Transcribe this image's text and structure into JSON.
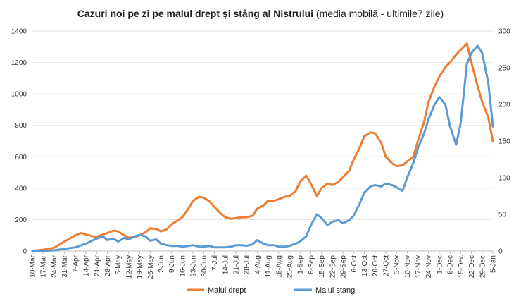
{
  "chart_data": {
    "type": "line",
    "title_bold": "Cazuri noi pe zi pe malul drept și stâng al Nistrului",
    "title_rest": " (media mobilă -  ultimile7 zile)",
    "y_left": {
      "min": 0,
      "max": 1400,
      "step": 200
    },
    "y_right": {
      "min": 0,
      "max": 300,
      "step": 50
    },
    "grid": "horizontal",
    "legend_position": "bottom",
    "categories": [
      "10-Mar",
      "17-Mar",
      "24-Mar",
      "31-Mar",
      "7-Apr",
      "14-Apr",
      "21-Apr",
      "28-Apr",
      "5-May",
      "12-May",
      "19-May",
      "26-May",
      "2-Jun",
      "9-Jun",
      "16-Jun",
      "23-Jun",
      "30-Jun",
      "7-Jul",
      "14-Jul",
      "21-Jul",
      "28-Jul",
      "4-Aug",
      "11-Aug",
      "18-Aug",
      "25-Aug",
      "1-Sep",
      "8-Sep",
      "15-Sep",
      "22-Sep",
      "29-Sep",
      "6-Oct",
      "13-Oct",
      "20-Oct",
      "27-Oct",
      "3-Nov",
      "10-Nov",
      "17-Nov",
      "24-Nov",
      "1-Dec",
      "8-Dec",
      "15-Dec",
      "22-Dec",
      "29-Dec",
      "5-Jan"
    ],
    "series": [
      {
        "name": "Malul drept",
        "axis": "left",
        "color": "#ED7D31",
        "x": [
          0,
          7,
          14,
          21,
          28,
          32,
          35,
          39,
          42,
          46,
          49,
          53,
          56,
          60,
          63,
          67,
          70,
          74,
          77,
          81,
          84,
          88,
          91,
          95,
          98,
          102,
          105,
          109,
          112,
          116,
          119,
          123,
          126,
          130,
          133,
          137,
          140,
          144,
          147,
          151,
          154,
          158,
          161,
          165,
          168,
          172,
          175,
          179,
          182,
          186,
          189,
          193,
          196,
          200,
          203,
          207,
          210,
          214,
          217,
          221,
          224,
          228,
          231,
          235,
          238,
          242,
          245,
          249,
          252,
          256,
          259,
          263,
          266,
          270,
          273,
          277,
          280,
          284,
          287,
          291,
          294,
          298,
          301
        ],
        "values": [
          2,
          8,
          20,
          60,
          100,
          115,
          105,
          95,
          90,
          105,
          115,
          130,
          125,
          100,
          85,
          90,
          100,
          120,
          145,
          140,
          125,
          140,
          170,
          195,
          215,
          270,
          320,
          345,
          340,
          315,
          280,
          240,
          215,
          205,
          210,
          215,
          215,
          225,
          270,
          290,
          320,
          320,
          330,
          345,
          350,
          380,
          440,
          480,
          430,
          350,
          400,
          430,
          420,
          440,
          470,
          510,
          580,
          660,
          730,
          755,
          750,
          690,
          600,
          560,
          540,
          545,
          570,
          600,
          700,
          820,
          950,
          1050,
          1110,
          1170,
          1200,
          1250,
          1280,
          1320,
          1200,
          1050,
          950,
          850,
          700
        ]
      },
      {
        "name": "Malul stang",
        "axis": "right",
        "color": "#5B9BD5",
        "x": [
          0,
          7,
          14,
          21,
          28,
          35,
          39,
          42,
          46,
          49,
          53,
          56,
          60,
          63,
          67,
          70,
          74,
          77,
          81,
          84,
          88,
          91,
          95,
          98,
          102,
          105,
          109,
          112,
          116,
          119,
          123,
          126,
          130,
          133,
          137,
          140,
          144,
          147,
          151,
          154,
          158,
          161,
          165,
          168,
          172,
          175,
          179,
          182,
          186,
          189,
          193,
          196,
          200,
          203,
          207,
          210,
          214,
          217,
          221,
          224,
          228,
          231,
          235,
          238,
          242,
          245,
          249,
          252,
          256,
          259,
          263,
          266,
          270,
          273,
          277,
          280,
          284,
          287,
          291,
          294,
          298,
          301
        ],
        "values": [
          0,
          0,
          1,
          3,
          5,
          10,
          14,
          17,
          20,
          15,
          17,
          13,
          18,
          16,
          20,
          22,
          20,
          14,
          16,
          10,
          8,
          7,
          7,
          6,
          7,
          8,
          6,
          6,
          7,
          5,
          5,
          5,
          6,
          8,
          8,
          7,
          9,
          15,
          10,
          8,
          8,
          6,
          6,
          7,
          10,
          13,
          20,
          35,
          50,
          45,
          35,
          40,
          42,
          38,
          42,
          48,
          65,
          80,
          88,
          90,
          88,
          92,
          90,
          87,
          82,
          100,
          120,
          140,
          160,
          180,
          200,
          210,
          200,
          170,
          145,
          175,
          255,
          270,
          280,
          270,
          230,
          170
        ]
      }
    ],
    "legend": [
      {
        "name": "Malul drept",
        "color": "#ED7D31"
      },
      {
        "name": "Malul stang",
        "color": "#5B9BD5"
      }
    ]
  }
}
